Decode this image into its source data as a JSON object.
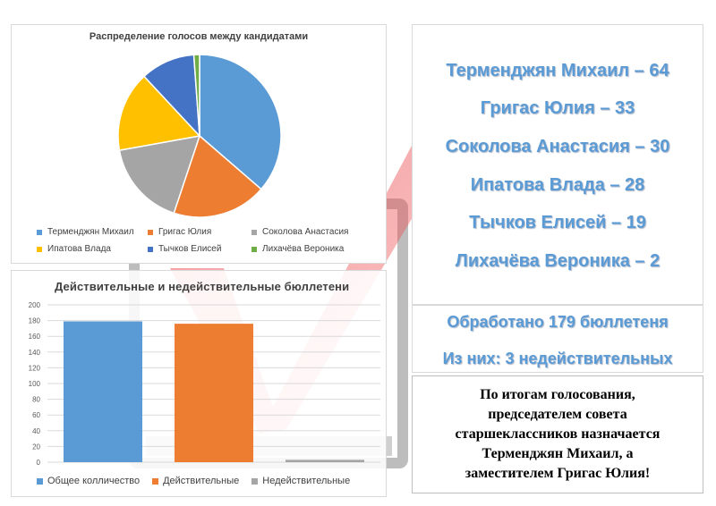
{
  "pie_chart": {
    "title": "Распределение голосов между кандидатами"
  },
  "bar_chart": {
    "title": "Действительные и недействительные бюллетени"
  },
  "chart_data": [
    {
      "type": "pie",
      "title": "Распределение голосов между кандидатами",
      "labels": [
        "Терменджян Михаил",
        "Григас Юлия",
        "Соколова Анастасия",
        "Ипатова Влада",
        "Тычков Елисей",
        "Лихачёва Вероника"
      ],
      "values": [
        64,
        33,
        30,
        28,
        19,
        2
      ],
      "colors": [
        "#5b9bd5",
        "#ed7d31",
        "#a5a5a5",
        "#ffc000",
        "#4472c4",
        "#70ad47"
      ],
      "legend_position": "bottom"
    },
    {
      "type": "bar",
      "title": "Действительные и недействительные бюллетени",
      "series": [
        {
          "name": "Общее колличество",
          "value": 179,
          "color": "#5b9bd5"
        },
        {
          "name": "Действительные",
          "value": 176,
          "color": "#ed7d31"
        },
        {
          "name": "Недействительные",
          "value": 3,
          "color": "#a5a5a5"
        }
      ],
      "y_ticks": [
        0,
        20,
        40,
        60,
        80,
        100,
        120,
        140,
        160,
        180,
        200
      ],
      "ylim": [
        0,
        200
      ],
      "grid": true,
      "legend_position": "bottom"
    }
  ],
  "results": [
    "Терменджян Михаил – 64",
    "Григас Юлия – 33",
    "Соколова Анастасия – 30",
    "Ипатова Влада – 28",
    "Тычков Елисей – 19",
    "Лихачёва Вероника – 2"
  ],
  "ballots": {
    "processed": "Обработано 179 бюллетеня",
    "invalid": "Из них: 3 недействительных"
  },
  "decision_lines": [
    "По итогам голосования,",
    "председателем совета",
    "старшеклассников назначается",
    "Терменджян Михаил, а",
    "заместителем Григас Юлия!"
  ]
}
